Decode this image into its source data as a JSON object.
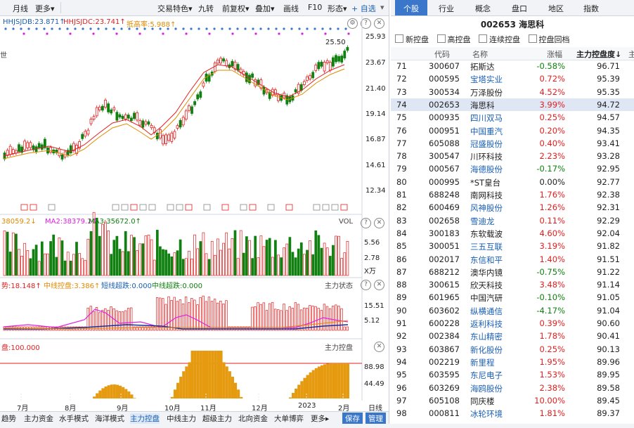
{
  "toolbar": {
    "items": [
      "月线",
      "更多▾",
      "交易特色▾",
      "九转",
      "前复权▾",
      "叠加▾",
      "画线",
      "F10",
      "形态▾",
      "+ 自选",
      "▾"
    ]
  },
  "price_legend": {
    "ma1": "HHJSJDB:23.871↑",
    "ma2": "HHJSJDC:23.741↑",
    "ma3": "抵高率:5.988↑",
    "label_left": "世"
  },
  "price_axis": [
    "25.93",
    "23.67",
    "21.40",
    "19.14",
    "16.87",
    "14.61",
    "12.34"
  ],
  "price_marker": "25.50",
  "vol_legend": {
    "ma1": "38059.2↓",
    "ma2": "MA2:38379.2↑",
    "ma3": "MA3:35672.0↑",
    "panel": "VOL"
  },
  "vol_axis": [
    "5.56",
    "2.78",
    "X万"
  ],
  "control_legend": {
    "a": "势:18.148↑",
    "b": "中线控盘:3.386↑",
    "c": "短线超跌:0.000",
    "d": "中线超跌:0.000",
    "panel": "主力状态"
  },
  "control_axis": [
    "15.51",
    "5.12"
  ],
  "score_legend": {
    "a": "盘:100.000",
    "panel": "主力控盘"
  },
  "score_axis": [
    "88.98",
    "44.49"
  ],
  "date_axis": [
    "7月",
    "8月",
    "9月",
    "10月",
    "11月",
    "12月",
    "2023",
    "2月"
  ],
  "date_axis_right": "日线",
  "bottom_tabs": [
    "趋势",
    "主力资金",
    "水手模式",
    "海洋模式",
    "主力控盘",
    "中线主力",
    "超级主力",
    "北向资金",
    "大单博弈",
    "更多▸"
  ],
  "bottom_active": "主力控盘",
  "bottom_buttons": [
    "保存",
    "管理"
  ],
  "right_tabs": [
    "个股",
    "行业",
    "概念",
    "盘口",
    "地区",
    "指数"
  ],
  "right_active": "个股",
  "stock_title": "002653  海思科",
  "filters": [
    "新控盘",
    "高控盘",
    "连续控盘",
    "控盘回档"
  ],
  "table_headers": [
    "代码",
    "名称",
    "涨幅",
    "主力控盘度↓",
    "主"
  ],
  "rows": [
    {
      "idx": "71",
      "code": "300607",
      "name": "拓斯达",
      "chg": "-0.58%",
      "score": "96.71",
      "nc": "black",
      "cc": "green"
    },
    {
      "idx": "72",
      "code": "000595",
      "name": "宝塔实业",
      "chg": "0.72%",
      "score": "95.39",
      "nc": "blue",
      "cc": "red"
    },
    {
      "idx": "73",
      "code": "300534",
      "name": "万泽股份",
      "chg": "4.52%",
      "score": "95.35",
      "nc": "black",
      "cc": "red"
    },
    {
      "idx": "74",
      "code": "002653",
      "name": "海思科",
      "chg": "3.99%",
      "score": "94.72",
      "nc": "black",
      "cc": "red",
      "sel": true
    },
    {
      "idx": "75",
      "code": "000935",
      "name": "四川双马",
      "chg": "0.25%",
      "score": "94.57",
      "nc": "blue",
      "cc": "red"
    },
    {
      "idx": "76",
      "code": "000951",
      "name": "中国重汽",
      "chg": "0.20%",
      "score": "94.35",
      "nc": "blue",
      "cc": "red"
    },
    {
      "idx": "77",
      "code": "605088",
      "name": "冠盛股份",
      "chg": "0.40%",
      "score": "93.41",
      "nc": "blue",
      "cc": "red"
    },
    {
      "idx": "78",
      "code": "300547",
      "name": "川环科技",
      "chg": "2.23%",
      "score": "93.28",
      "nc": "black",
      "cc": "red"
    },
    {
      "idx": "79",
      "code": "000567",
      "name": "海德股份",
      "chg": "-0.17%",
      "score": "92.95",
      "nc": "blue",
      "cc": "green"
    },
    {
      "idx": "80",
      "code": "000995",
      "name": "*ST皇台",
      "chg": "0.00%",
      "score": "92.77",
      "nc": "black",
      "cc": "black"
    },
    {
      "idx": "81",
      "code": "688248",
      "name": "南网科技",
      "chg": "1.76%",
      "score": "92.38",
      "nc": "black",
      "cc": "red"
    },
    {
      "idx": "82",
      "code": "600469",
      "name": "风神股份",
      "chg": "1.26%",
      "score": "92.31",
      "nc": "blue",
      "cc": "red"
    },
    {
      "idx": "83",
      "code": "002658",
      "name": "雪迪龙",
      "chg": "0.11%",
      "score": "92.29",
      "nc": "blue",
      "cc": "red"
    },
    {
      "idx": "84",
      "code": "300183",
      "name": "东软载波",
      "chg": "4.60%",
      "score": "92.04",
      "nc": "black",
      "cc": "red"
    },
    {
      "idx": "85",
      "code": "300051",
      "name": "三五互联",
      "chg": "3.19%",
      "score": "91.82",
      "nc": "blue",
      "cc": "red"
    },
    {
      "idx": "86",
      "code": "002017",
      "name": "东信和平",
      "chg": "1.40%",
      "score": "91.51",
      "nc": "blue",
      "cc": "red"
    },
    {
      "idx": "87",
      "code": "688212",
      "name": "澳华内镜",
      "chg": "-0.75%",
      "score": "91.22",
      "nc": "black",
      "cc": "green"
    },
    {
      "idx": "88",
      "code": "300615",
      "name": "欣天科技",
      "chg": "3.48%",
      "score": "91.14",
      "nc": "black",
      "cc": "red"
    },
    {
      "idx": "89",
      "code": "601965",
      "name": "中国汽研",
      "chg": "-0.10%",
      "score": "91.05",
      "nc": "black",
      "cc": "green"
    },
    {
      "idx": "90",
      "code": "603602",
      "name": "纵横通信",
      "chg": "-4.17%",
      "score": "91.04",
      "nc": "blue",
      "cc": "green"
    },
    {
      "idx": "91",
      "code": "600228",
      "name": "返利科技",
      "chg": "0.39%",
      "score": "90.60",
      "nc": "blue",
      "cc": "red"
    },
    {
      "idx": "92",
      "code": "002384",
      "name": "东山精密",
      "chg": "1.78%",
      "score": "90.41",
      "nc": "blue",
      "cc": "red"
    },
    {
      "idx": "93",
      "code": "603867",
      "name": "新化股份",
      "chg": "0.25%",
      "score": "90.13",
      "nc": "blue",
      "cc": "red"
    },
    {
      "idx": "94",
      "code": "002219",
      "name": "新里程",
      "chg": "1.95%",
      "score": "89.96",
      "nc": "blue",
      "cc": "red"
    },
    {
      "idx": "95",
      "code": "603595",
      "name": "东尼电子",
      "chg": "1.53%",
      "score": "89.95",
      "nc": "blue",
      "cc": "red"
    },
    {
      "idx": "96",
      "code": "603269",
      "name": "海鸥股份",
      "chg": "2.38%",
      "score": "89.58",
      "nc": "blue",
      "cc": "red"
    },
    {
      "idx": "97",
      "code": "605108",
      "name": "同庆楼",
      "chg": "10.00%",
      "score": "89.45",
      "nc": "black",
      "cc": "red"
    },
    {
      "idx": "98",
      "code": "000811",
      "name": "冰轮环境",
      "chg": "1.81%",
      "score": "89.37",
      "nc": "blue",
      "cc": "red"
    }
  ],
  "colors": {
    "red": "#e02020",
    "green": "#108010",
    "blue": "#1a5fb4",
    "accent": "#3a76c9",
    "orange": "#e08a00"
  }
}
